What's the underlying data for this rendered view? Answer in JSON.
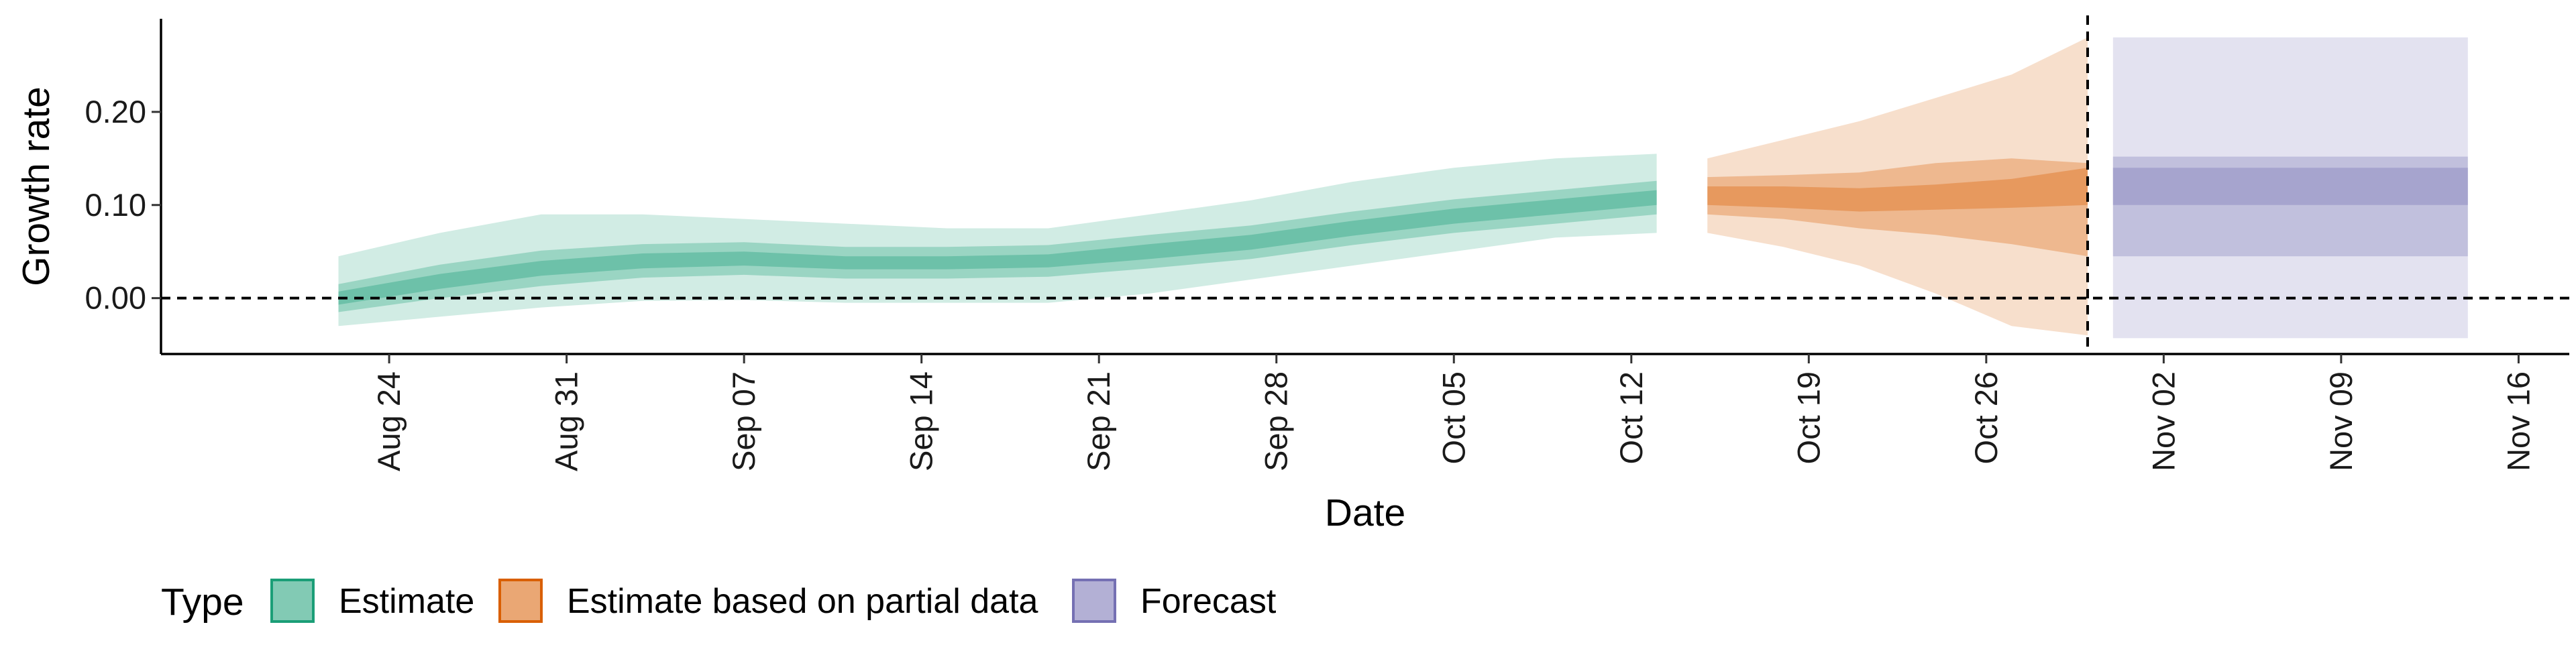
{
  "chart_data": {
    "type": "area",
    "xlabel": "Date",
    "ylabel": "Growth rate",
    "xlim": [
      "2020-08-15",
      "2020-11-18"
    ],
    "ylim": [
      -0.06,
      0.3
    ],
    "x_ticks": [
      "2020-08-24",
      "2020-08-31",
      "2020-09-07",
      "2020-09-14",
      "2020-09-21",
      "2020-09-28",
      "2020-10-05",
      "2020-10-12",
      "2020-10-19",
      "2020-10-26",
      "2020-11-02",
      "2020-11-09",
      "2020-11-16"
    ],
    "x_tick_labels": [
      "Aug 24",
      "Aug 31",
      "Sep 07",
      "Sep 14",
      "Sep 21",
      "Sep 28",
      "Oct 05",
      "Oct 12",
      "Oct 19",
      "Oct 26",
      "Nov 02",
      "Nov 09",
      "Nov 16"
    ],
    "y_ticks": [
      0.0,
      0.1,
      0.2
    ],
    "y_tick_labels": [
      "0.00",
      "0.10",
      "0.20"
    ],
    "hline": 0,
    "vline": "2020-10-30",
    "grid": false,
    "legend": {
      "title": "Type",
      "position": "bottom",
      "entries": [
        "Estimate",
        "Estimate based on partial data",
        "Forecast"
      ]
    },
    "colors": {
      "Estimate": "#1b9e77",
      "Estimate based on partial data": "#d95f02",
      "Forecast": "#7570b3"
    },
    "series": [
      {
        "name": "Estimate",
        "x": [
          "2020-08-22",
          "2020-08-26",
          "2020-08-30",
          "2020-09-03",
          "2020-09-07",
          "2020-09-11",
          "2020-09-15",
          "2020-09-19",
          "2020-09-23",
          "2020-09-27",
          "2020-10-01",
          "2020-10-05",
          "2020-10-09",
          "2020-10-13"
        ],
        "median": [
          0.0,
          0.018,
          0.032,
          0.04,
          0.042,
          0.038,
          0.038,
          0.04,
          0.05,
          0.06,
          0.075,
          0.088,
          0.098,
          0.108
        ],
        "lower_20": [
          -0.007,
          0.01,
          0.024,
          0.032,
          0.035,
          0.031,
          0.031,
          0.033,
          0.042,
          0.052,
          0.067,
          0.08,
          0.09,
          0.1
        ],
        "upper_20": [
          0.007,
          0.026,
          0.04,
          0.048,
          0.05,
          0.045,
          0.045,
          0.047,
          0.058,
          0.068,
          0.083,
          0.096,
          0.106,
          0.116
        ],
        "lower_50": [
          -0.015,
          0.0,
          0.013,
          0.022,
          0.025,
          0.021,
          0.021,
          0.023,
          0.032,
          0.042,
          0.057,
          0.07,
          0.08,
          0.09
        ],
        "upper_50": [
          0.015,
          0.036,
          0.051,
          0.058,
          0.06,
          0.055,
          0.055,
          0.057,
          0.068,
          0.078,
          0.093,
          0.106,
          0.116,
          0.126
        ],
        "lower_90": [
          -0.03,
          -0.02,
          -0.01,
          -0.003,
          -0.002,
          -0.005,
          -0.005,
          -0.005,
          0.005,
          0.02,
          0.035,
          0.05,
          0.065,
          0.07
        ],
        "upper_90": [
          0.045,
          0.07,
          0.09,
          0.09,
          0.085,
          0.08,
          0.075,
          0.075,
          0.09,
          0.105,
          0.125,
          0.14,
          0.15,
          0.155
        ]
      },
      {
        "name": "Estimate based on partial data",
        "x": [
          "2020-10-15",
          "2020-10-18",
          "2020-10-21",
          "2020-10-24",
          "2020-10-27",
          "2020-10-30"
        ],
        "median": [
          0.11,
          0.108,
          0.105,
          0.108,
          0.112,
          0.12
        ],
        "lower_20": [
          0.1,
          0.097,
          0.093,
          0.095,
          0.097,
          0.1
        ],
        "upper_20": [
          0.12,
          0.12,
          0.118,
          0.122,
          0.128,
          0.14
        ],
        "lower_50": [
          0.09,
          0.085,
          0.075,
          0.068,
          0.058,
          0.045
        ],
        "upper_50": [
          0.13,
          0.132,
          0.135,
          0.145,
          0.15,
          0.145
        ],
        "lower_90": [
          0.07,
          0.055,
          0.035,
          0.005,
          -0.03,
          -0.04
        ],
        "upper_90": [
          0.15,
          0.17,
          0.19,
          0.215,
          0.24,
          0.28
        ]
      },
      {
        "name": "Forecast",
        "x": [
          "2020-10-31",
          "2020-11-14"
        ],
        "median": [
          0.12,
          0.12
        ],
        "lower_20": [
          0.1,
          0.1
        ],
        "upper_20": [
          0.14,
          0.14
        ],
        "lower_50": [
          0.045,
          0.045
        ],
        "upper_50": [
          0.152,
          0.152
        ],
        "lower_90": [
          -0.043,
          -0.043
        ],
        "upper_90": [
          0.28,
          0.28
        ]
      }
    ]
  }
}
